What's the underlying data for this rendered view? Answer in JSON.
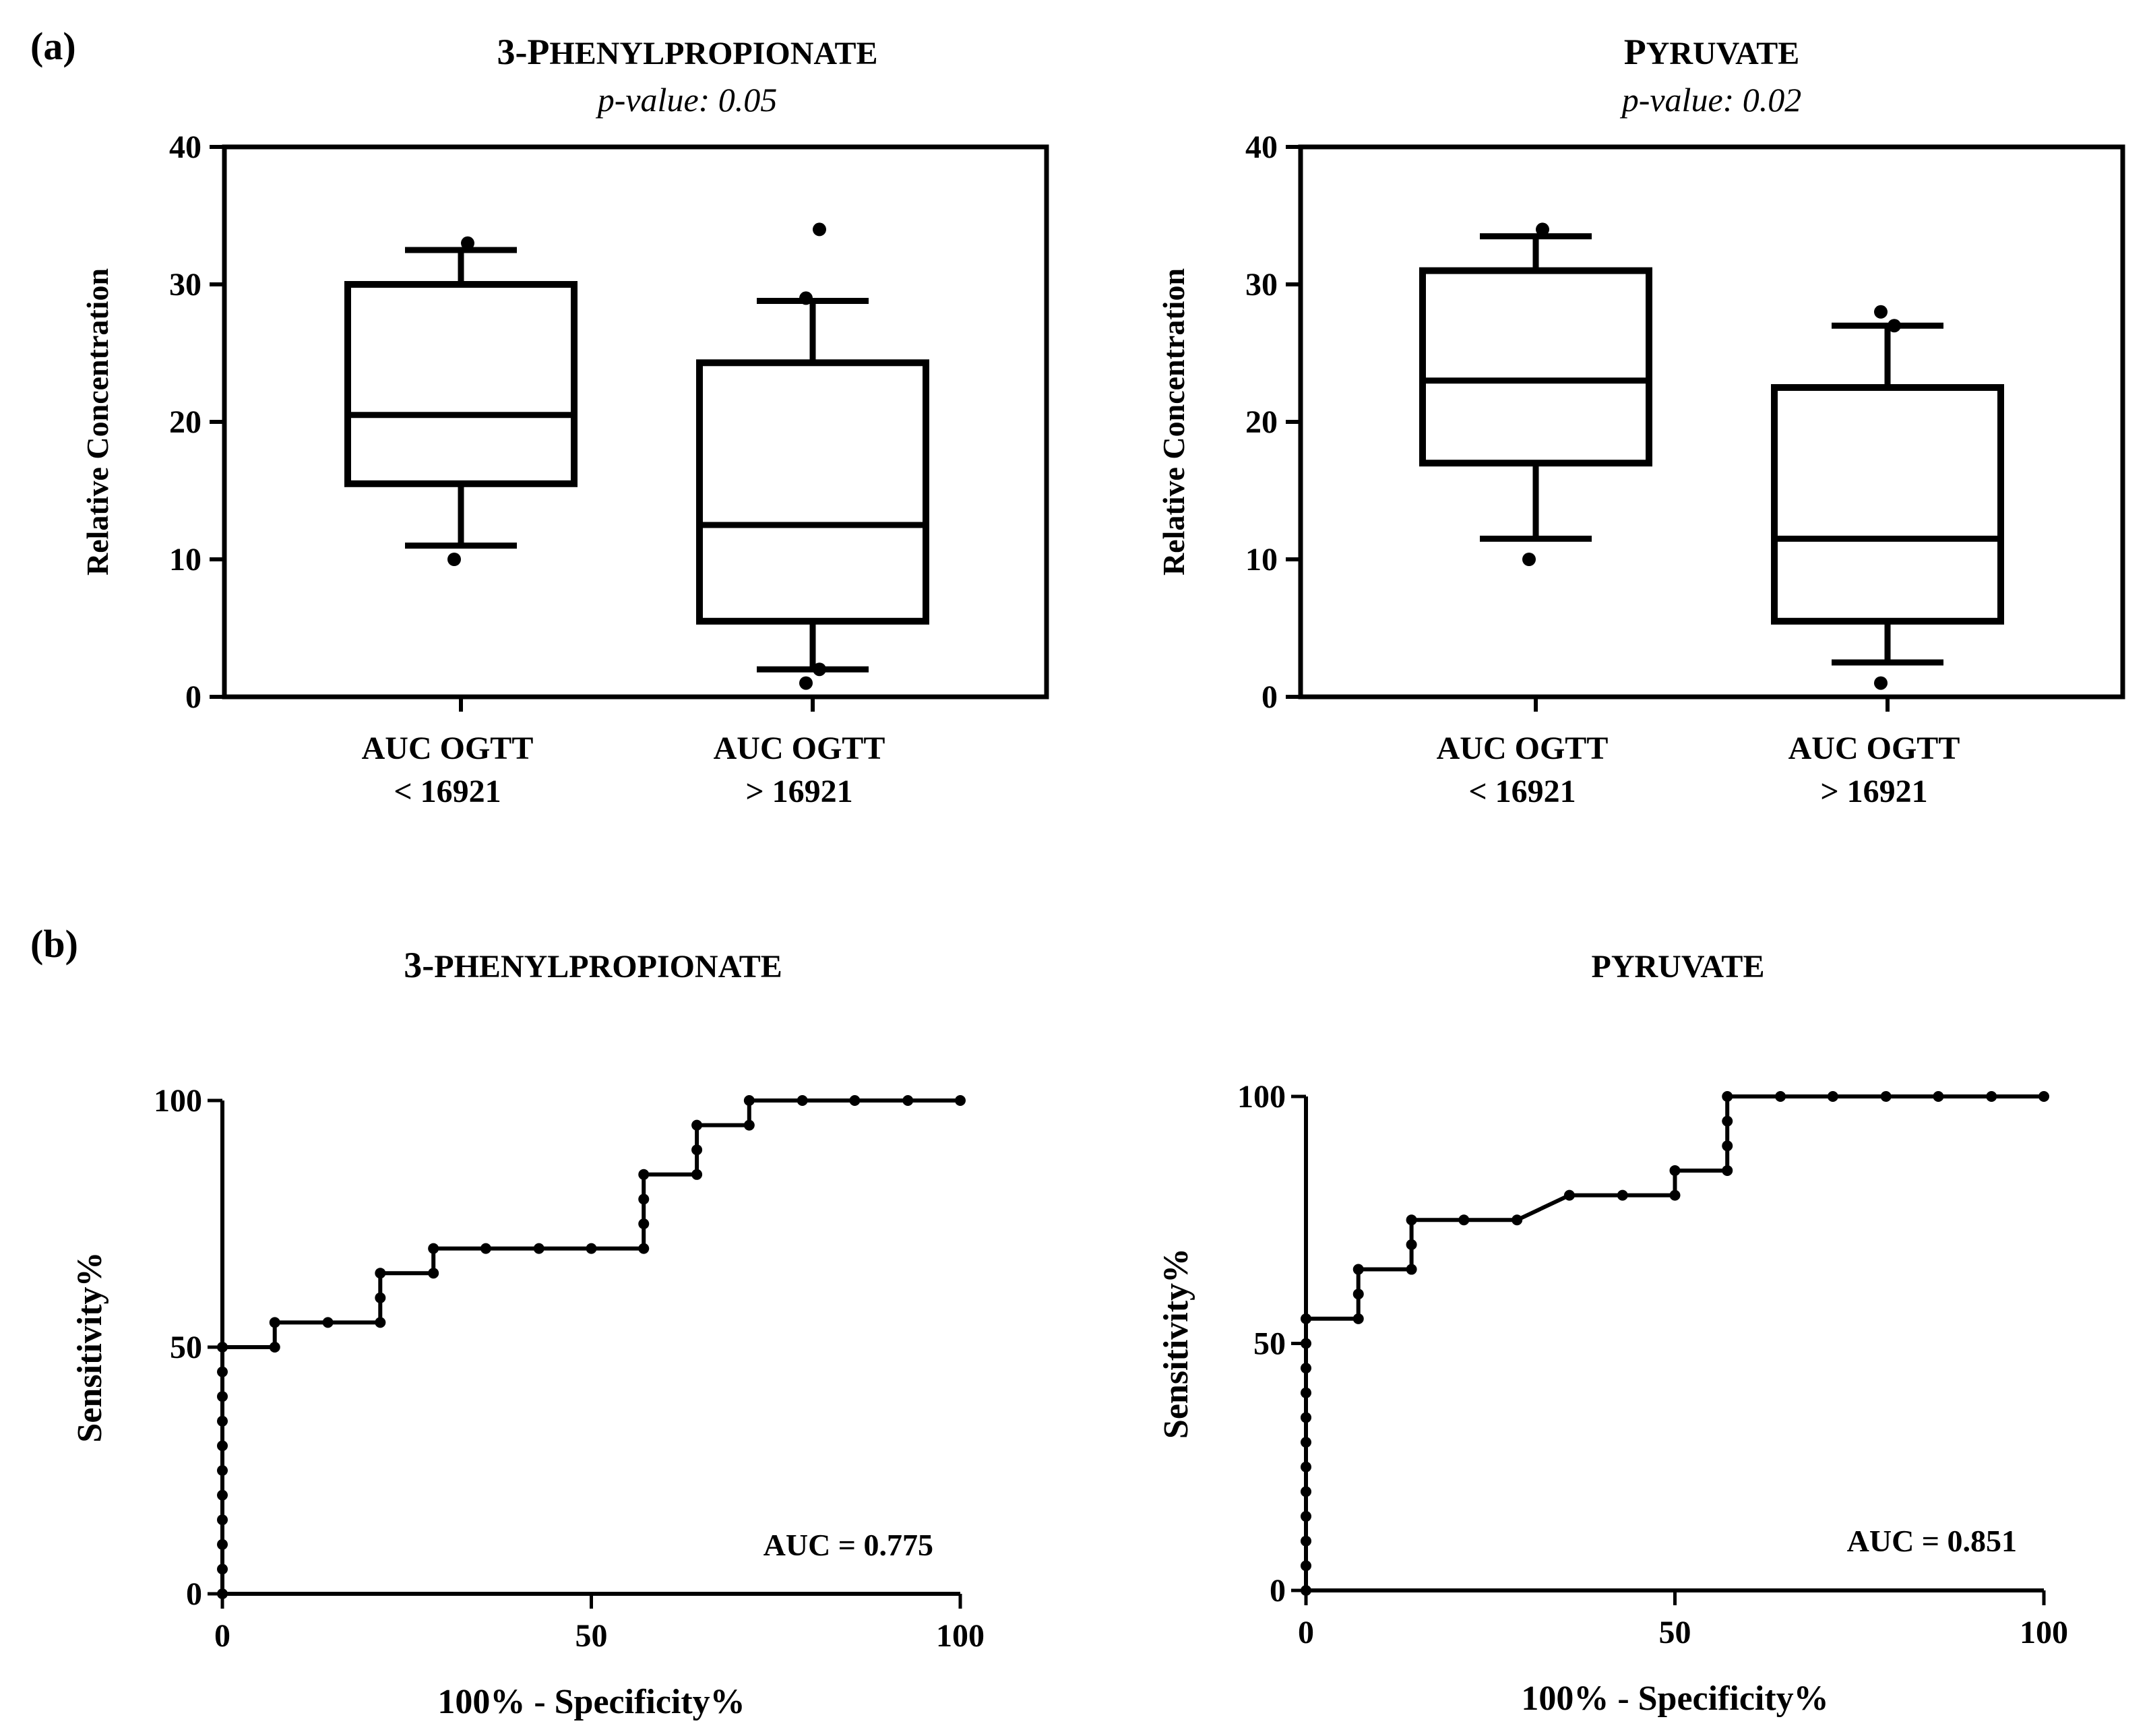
{
  "panel_labels": {
    "a": "(a)",
    "b": "(b)"
  },
  "chart_data": [
    {
      "type": "box",
      "title_prefix": "3-P",
      "title_small": "HENYLPROPIONATE",
      "subtitle": "p-value: 0.05",
      "ylabel": "Relative Concentration",
      "ylim": [
        0,
        40
      ],
      "yticks": [
        "0",
        "10",
        "20",
        "30",
        "40"
      ],
      "categories": [
        {
          "line1": "AUC OGTT",
          "line2": "< 16921"
        },
        {
          "line1": "AUC OGTT",
          "line2": "> 16921"
        }
      ],
      "boxes": [
        {
          "whisker_low": 11,
          "q1": 15.5,
          "median": 20.5,
          "q3": 30,
          "whisker_high": 32.5,
          "outliers": [
            10,
            33
          ]
        },
        {
          "whisker_low": 2,
          "q1": 5.5,
          "median": 12.5,
          "q3": 24.3,
          "whisker_high": 28.8,
          "outliers": [
            1,
            2,
            29,
            34
          ]
        }
      ]
    },
    {
      "type": "box",
      "title_prefix": "P",
      "title_small": "YRUVATE",
      "subtitle": "p-value: 0.02",
      "ylabel": "Relative Concentration",
      "ylim": [
        0,
        40
      ],
      "yticks": [
        "0",
        "10",
        "20",
        "30",
        "40"
      ],
      "categories": [
        {
          "line1": "AUC OGTT",
          "line2": "< 16921"
        },
        {
          "line1": "AUC OGTT",
          "line2": "> 16921"
        }
      ],
      "boxes": [
        {
          "whisker_low": 11.5,
          "q1": 17,
          "median": 23,
          "q3": 31,
          "whisker_high": 33.5,
          "outliers": [
            10,
            34
          ]
        },
        {
          "whisker_low": 2.5,
          "q1": 5.5,
          "median": 11.5,
          "q3": 22.5,
          "whisker_high": 27,
          "outliers": [
            1,
            27,
            28
          ]
        }
      ]
    },
    {
      "type": "line",
      "title_prefix": "3-",
      "title_small": "PHENYLPROPIONATE",
      "xlabel": "100% - Specificity%",
      "ylabel": "Sensitivity%",
      "xlim": [
        0,
        100
      ],
      "ylim": [
        0,
        100
      ],
      "xticks": [
        "0",
        "50",
        "100"
      ],
      "yticks": [
        "0",
        "50",
        "100"
      ],
      "annotation": "AUC = 0.775",
      "x": [
        0,
        0,
        0,
        0,
        0,
        0,
        0,
        0,
        0,
        0,
        0,
        7.1,
        7.1,
        14.3,
        21.4,
        21.4,
        21.4,
        28.6,
        28.6,
        35.7,
        42.9,
        50,
        57.1,
        57.1,
        57.1,
        57.1,
        64.3,
        64.3,
        64.3,
        71.4,
        71.4,
        78.6,
        85.7,
        92.9,
        100
      ],
      "y": [
        0,
        5,
        10,
        15,
        20,
        25,
        30,
        35,
        40,
        45,
        50,
        50,
        55,
        55,
        55,
        60,
        65,
        65,
        70,
        70,
        70,
        70,
        70,
        75,
        80,
        85,
        85,
        90,
        95,
        95,
        100,
        100,
        100,
        100,
        100
      ]
    },
    {
      "type": "line",
      "title_prefix": "",
      "title_small": "PYRUVATE",
      "xlabel": "100% - Specificity%",
      "ylabel": "Sensitivity%",
      "xlim": [
        0,
        100
      ],
      "ylim": [
        0,
        100
      ],
      "xticks": [
        "0",
        "50",
        "100"
      ],
      "yticks": [
        "0",
        "50",
        "100"
      ],
      "annotation": "AUC = 0.851",
      "x": [
        0,
        0,
        0,
        0,
        0,
        0,
        0,
        0,
        0,
        0,
        0,
        0,
        7.1,
        7.1,
        7.1,
        14.3,
        14.3,
        14.3,
        21.4,
        28.6,
        35.7,
        42.9,
        50,
        50,
        57.1,
        57.1,
        57.1,
        57.1,
        64.3,
        71.4,
        78.6,
        85.7,
        92.9,
        100
      ],
      "y": [
        0,
        5,
        10,
        15,
        20,
        25,
        30,
        35,
        40,
        45,
        50,
        55,
        55,
        60,
        65,
        65,
        70,
        75,
        75,
        75,
        80,
        80,
        80,
        85,
        85,
        90,
        95,
        100,
        100,
        100,
        100,
        100,
        100,
        100
      ]
    }
  ]
}
